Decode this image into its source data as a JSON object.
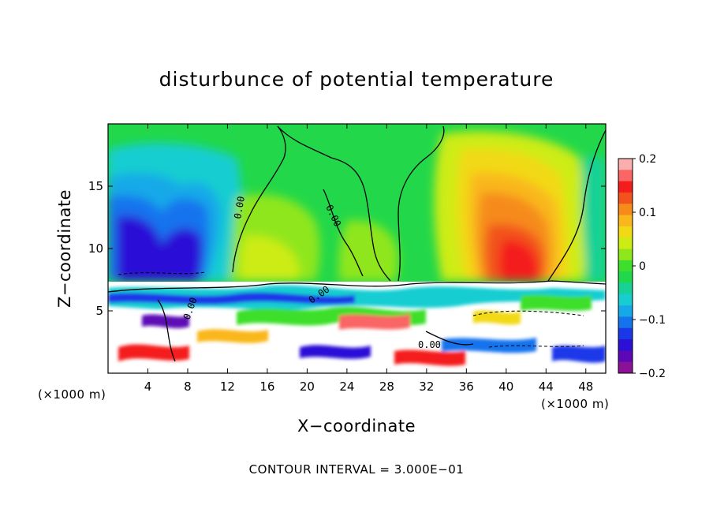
{
  "chart_data": {
    "type": "heatmap",
    "title": "disturbunce of potential temperature",
    "xlabel": "X−coordinate",
    "ylabel": "Z−coordinate",
    "x_unit": "(×1000 m)",
    "xlim": [
      0,
      50
    ],
    "ylim": [
      0,
      20
    ],
    "x_ticks": [
      4,
      8,
      12,
      16,
      20,
      24,
      28,
      32,
      36,
      40,
      44,
      48
    ],
    "y_ticks": [
      5,
      10,
      15
    ],
    "colorbar": {
      "range": [
        -0.2,
        0.2
      ],
      "tick_values": [
        0.2,
        0.1,
        0,
        -0.1,
        -0.2
      ],
      "tick_labels": [
        "0.2",
        "0.1",
        "0",
        "−0.1",
        "−0.2"
      ],
      "colors": [
        "#fbaeae",
        "#fa6565",
        "#f41c1c",
        "#f2531c",
        "#f68b1a",
        "#f9b71d",
        "#f2d915",
        "#cdec13",
        "#8fe61a",
        "#3ddf2c",
        "#1fd84e",
        "#18d196",
        "#18cdd1",
        "#15a9e8",
        "#1673ee",
        "#1b38e8",
        "#2b10d6",
        "#5d08b6",
        "#8b1296"
      ]
    },
    "contour_labels": [
      "0.00",
      "0.00",
      "0.00",
      "0.00",
      "0.00"
    ],
    "contour_interval": "CONTOUR INTERVAL = 3.000E−01"
  },
  "colors": {
    "background": "#ffffff",
    "upper_field_green": "#22d84a",
    "blue_anomaly": "#1b38e8",
    "warm_anomaly": "#f41c1c"
  }
}
